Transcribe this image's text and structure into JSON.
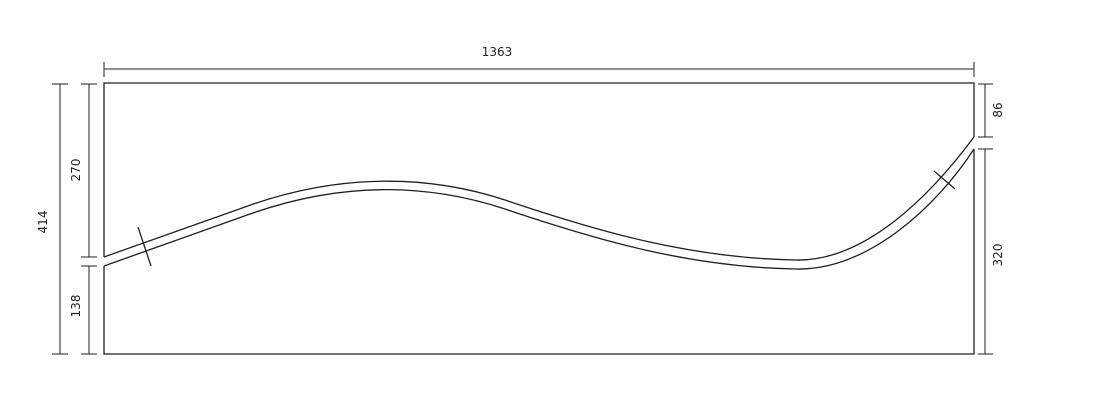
{
  "dimensions": {
    "overall_width": "1363",
    "overall_height": "414",
    "left_upper": "270",
    "left_lower": "138",
    "right_upper": "86",
    "right_lower": "320"
  },
  "colors": {
    "line": "#231f20",
    "background": "#ffffff"
  }
}
